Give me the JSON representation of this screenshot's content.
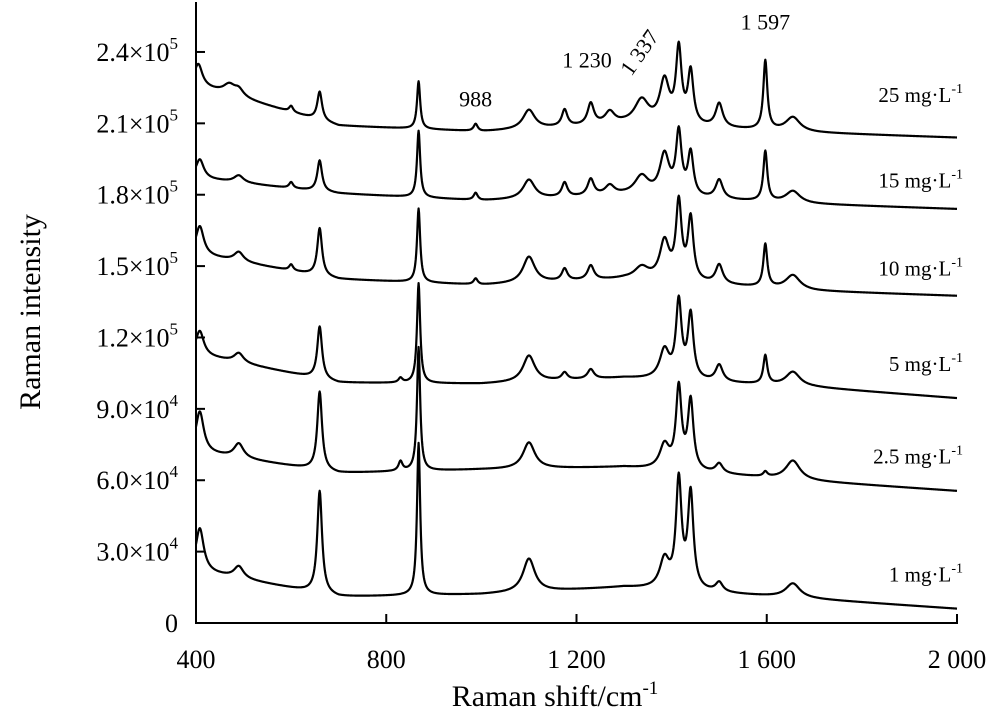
{
  "chart_data": {
    "type": "line",
    "xlabel": "Raman shift/cm",
    "xlabel_sup": "-1",
    "ylabel": "Raman intensity",
    "xlim": [
      400,
      2000
    ],
    "ylim": [
      0,
      261000
    ],
    "x_ticks": [
      {
        "value": 400,
        "label": "400"
      },
      {
        "value": 800,
        "label": "800"
      },
      {
        "value": 1200,
        "label": "1 200"
      },
      {
        "value": 1600,
        "label": "1 600"
      },
      {
        "value": 2000,
        "label": "2 000"
      }
    ],
    "y_ticks": [
      {
        "value": 0,
        "mant": "0",
        "exp": ""
      },
      {
        "value": 30000,
        "mant": "3.0×10",
        "exp": "4"
      },
      {
        "value": 60000,
        "mant": "6.0×10",
        "exp": "4"
      },
      {
        "value": 90000,
        "mant": "9.0×10",
        "exp": "4"
      },
      {
        "value": 120000,
        "mant": "1.2×10",
        "exp": "5"
      },
      {
        "value": 150000,
        "mant": "1.5×10",
        "exp": "5"
      },
      {
        "value": 180000,
        "mant": "1.8×10",
        "exp": "5"
      },
      {
        "value": 210000,
        "mant": "2.1×10",
        "exp": "5"
      },
      {
        "value": 240000,
        "mant": "2.4×10",
        "exp": "5"
      }
    ],
    "peak_labels": [
      {
        "text": "988",
        "x": 988,
        "y": 217000,
        "rotate": 0
      },
      {
        "text": "1 230",
        "x": 1222,
        "y": 233500,
        "rotate": 0
      },
      {
        "text": "1 337",
        "x": 1345,
        "y": 238000,
        "rotate": -55
      },
      {
        "text": "1 597",
        "x": 1597,
        "y": 249500,
        "rotate": 0
      }
    ],
    "series": [
      {
        "name": "25 mg·L",
        "name_sup": "-1",
        "label_y": 219000,
        "baseline": [
          [
            400,
            226000
          ],
          [
            700,
            209000
          ],
          [
            1000,
            206500
          ],
          [
            1300,
            209500
          ],
          [
            1700,
            206000
          ],
          [
            2000,
            204000
          ]
        ],
        "peaks": [
          {
            "x": 405,
            "h": 9000,
            "w": 10
          },
          {
            "x": 470,
            "h": 4000,
            "w": 15
          },
          {
            "x": 490,
            "h": 3000,
            "w": 12
          },
          {
            "x": 600,
            "h": 2500,
            "w": 5
          },
          {
            "x": 660,
            "h": 12000,
            "w": 6
          },
          {
            "x": 868,
            "h": 20000,
            "w": 4
          },
          {
            "x": 988,
            "h": 3000,
            "w": 5
          },
          {
            "x": 1100,
            "h": 8000,
            "w": 15
          },
          {
            "x": 1175,
            "h": 7000,
            "w": 7
          },
          {
            "x": 1230,
            "h": 9000,
            "w": 8
          },
          {
            "x": 1270,
            "h": 5000,
            "w": 12
          },
          {
            "x": 1337,
            "h": 10000,
            "w": 18
          },
          {
            "x": 1385,
            "h": 18000,
            "w": 12
          },
          {
            "x": 1415,
            "h": 31000,
            "w": 7
          },
          {
            "x": 1440,
            "h": 22000,
            "w": 7
          },
          {
            "x": 1500,
            "h": 10000,
            "w": 9
          },
          {
            "x": 1597,
            "h": 29000,
            "w": 5
          },
          {
            "x": 1655,
            "h": 6000,
            "w": 18
          }
        ]
      },
      {
        "name": "15 mg·L",
        "name_sup": "-1",
        "label_y": 183000,
        "baseline": [
          [
            400,
            187000
          ],
          [
            700,
            180500
          ],
          [
            1000,
            177500
          ],
          [
            1300,
            179500
          ],
          [
            1700,
            176000
          ],
          [
            2000,
            174000
          ]
        ],
        "peaks": [
          {
            "x": 408,
            "h": 8000,
            "w": 10
          },
          {
            "x": 490,
            "h": 3000,
            "w": 12
          },
          {
            "x": 600,
            "h": 2500,
            "w": 5
          },
          {
            "x": 660,
            "h": 13000,
            "w": 6
          },
          {
            "x": 868,
            "h": 28000,
            "w": 4
          },
          {
            "x": 988,
            "h": 3000,
            "w": 5
          },
          {
            "x": 1100,
            "h": 8000,
            "w": 15
          },
          {
            "x": 1175,
            "h": 6000,
            "w": 7
          },
          {
            "x": 1230,
            "h": 7000,
            "w": 8
          },
          {
            "x": 1270,
            "h": 4000,
            "w": 12
          },
          {
            "x": 1337,
            "h": 8000,
            "w": 18
          },
          {
            "x": 1385,
            "h": 17000,
            "w": 12
          },
          {
            "x": 1415,
            "h": 26000,
            "w": 7
          },
          {
            "x": 1440,
            "h": 18000,
            "w": 7
          },
          {
            "x": 1500,
            "h": 8000,
            "w": 9
          },
          {
            "x": 1597,
            "h": 21000,
            "w": 5
          },
          {
            "x": 1655,
            "h": 5000,
            "w": 18
          }
        ]
      },
      {
        "name": "10 mg·L",
        "name_sup": "-1",
        "label_y": 146000,
        "baseline": [
          [
            400,
            155000
          ],
          [
            700,
            144500
          ],
          [
            1000,
            142000
          ],
          [
            1300,
            144500
          ],
          [
            1700,
            139500
          ],
          [
            2000,
            137500
          ]
        ],
        "peaks": [
          {
            "x": 408,
            "h": 12000,
            "w": 10
          },
          {
            "x": 490,
            "h": 4000,
            "w": 12
          },
          {
            "x": 600,
            "h": 2500,
            "w": 5
          },
          {
            "x": 660,
            "h": 20000,
            "w": 6
          },
          {
            "x": 868,
            "h": 31000,
            "w": 4
          },
          {
            "x": 988,
            "h": 2500,
            "w": 5
          },
          {
            "x": 1100,
            "h": 11000,
            "w": 15
          },
          {
            "x": 1175,
            "h": 5000,
            "w": 7
          },
          {
            "x": 1230,
            "h": 6000,
            "w": 8
          },
          {
            "x": 1337,
            "h": 5000,
            "w": 18
          },
          {
            "x": 1385,
            "h": 16000,
            "w": 12
          },
          {
            "x": 1415,
            "h": 32000,
            "w": 7
          },
          {
            "x": 1440,
            "h": 26000,
            "w": 7
          },
          {
            "x": 1500,
            "h": 8000,
            "w": 9
          },
          {
            "x": 1597,
            "h": 18000,
            "w": 5
          },
          {
            "x": 1655,
            "h": 6000,
            "w": 18
          }
        ]
      },
      {
        "name": "5 mg·L",
        "name_sup": "-1",
        "label_y": 106000,
        "baseline": [
          [
            400,
            113000
          ],
          [
            700,
            101000
          ],
          [
            1000,
            100500
          ],
          [
            1300,
            103000
          ],
          [
            1700,
            99000
          ],
          [
            2000,
            94500
          ]
        ],
        "peaks": [
          {
            "x": 408,
            "h": 10000,
            "w": 10
          },
          {
            "x": 490,
            "h": 4000,
            "w": 12
          },
          {
            "x": 660,
            "h": 22000,
            "w": 6
          },
          {
            "x": 830,
            "h": 2000,
            "w": 5
          },
          {
            "x": 868,
            "h": 42000,
            "w": 4
          },
          {
            "x": 1100,
            "h": 11000,
            "w": 15
          },
          {
            "x": 1175,
            "h": 3000,
            "w": 7
          },
          {
            "x": 1230,
            "h": 4000,
            "w": 8
          },
          {
            "x": 1385,
            "h": 12000,
            "w": 12
          },
          {
            "x": 1415,
            "h": 32000,
            "w": 7
          },
          {
            "x": 1440,
            "h": 27000,
            "w": 7
          },
          {
            "x": 1500,
            "h": 7000,
            "w": 9
          },
          {
            "x": 1597,
            "h": 12000,
            "w": 5
          },
          {
            "x": 1655,
            "h": 6000,
            "w": 18
          }
        ]
      },
      {
        "name": "2.5 mg·L",
        "name_sup": "-1",
        "label_y": 67000,
        "baseline": [
          [
            400,
            72000
          ],
          [
            700,
            63000
          ],
          [
            1000,
            64500
          ],
          [
            1300,
            65500
          ],
          [
            1700,
            59500
          ],
          [
            2000,
            55500
          ]
        ],
        "peaks": [
          {
            "x": 408,
            "h": 17000,
            "w": 10
          },
          {
            "x": 490,
            "h": 6000,
            "w": 12
          },
          {
            "x": 660,
            "h": 33000,
            "w": 6
          },
          {
            "x": 830,
            "h": 4000,
            "w": 5
          },
          {
            "x": 868,
            "h": 52000,
            "w": 4
          },
          {
            "x": 1100,
            "h": 11000,
            "w": 15
          },
          {
            "x": 1385,
            "h": 10000,
            "w": 12
          },
          {
            "x": 1415,
            "h": 34000,
            "w": 7
          },
          {
            "x": 1440,
            "h": 29000,
            "w": 7
          },
          {
            "x": 1500,
            "h": 4000,
            "w": 9
          },
          {
            "x": 1597,
            "h": 2000,
            "w": 5
          },
          {
            "x": 1655,
            "h": 8000,
            "w": 18
          }
        ]
      },
      {
        "name": "1 mg·L",
        "name_sup": "-1",
        "label_y": 17500,
        "baseline": [
          [
            400,
            22000
          ],
          [
            700,
            11000
          ],
          [
            1000,
            12000
          ],
          [
            1300,
            15000
          ],
          [
            1700,
            10000
          ],
          [
            2000,
            6000
          ]
        ],
        "peaks": [
          {
            "x": 408,
            "h": 18000,
            "w": 10
          },
          {
            "x": 490,
            "h": 5000,
            "w": 12
          },
          {
            "x": 660,
            "h": 43000,
            "w": 6
          },
          {
            "x": 868,
            "h": 64000,
            "w": 4
          },
          {
            "x": 1100,
            "h": 14000,
            "w": 15
          },
          {
            "x": 1385,
            "h": 12000,
            "w": 12
          },
          {
            "x": 1415,
            "h": 45000,
            "w": 7
          },
          {
            "x": 1440,
            "h": 40000,
            "w": 7
          },
          {
            "x": 1500,
            "h": 4000,
            "w": 9
          },
          {
            "x": 1655,
            "h": 6000,
            "w": 18
          }
        ]
      }
    ]
  }
}
